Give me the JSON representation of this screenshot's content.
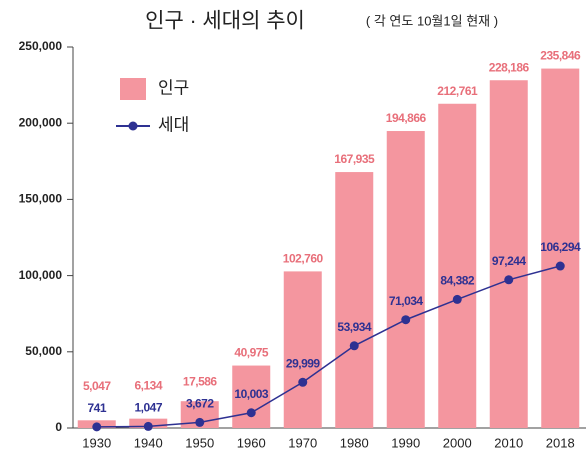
{
  "chart_data": {
    "type": "bar",
    "title": "인구 · 세대의 추이",
    "subtitle": "( 각 연도 10월1일 현재 )",
    "categories": [
      "1930",
      "1940",
      "1950",
      "1960",
      "1970",
      "1980",
      "1990",
      "2000",
      "2010",
      "2018"
    ],
    "series": [
      {
        "name": "인구",
        "type": "bar",
        "color": "#f4969f",
        "label_color": "#e86f7a",
        "values": [
          5047,
          6134,
          17586,
          40975,
          102760,
          167935,
          194866,
          212761,
          228186,
          235846
        ],
        "value_labels": [
          "5,047",
          "6,134",
          "17,586",
          "40,975",
          "102,760",
          "167,935",
          "194,866",
          "212,761",
          "228,186",
          "235,846"
        ]
      },
      {
        "name": "세대",
        "type": "line",
        "color": "#2e3192",
        "label_color": "#2e3192",
        "values": [
          741,
          1047,
          3672,
          10003,
          29999,
          53934,
          71034,
          84382,
          97244,
          106294
        ],
        "value_labels": [
          "741",
          "1,047",
          "3,672",
          "10,003",
          "29,999",
          "53,934",
          "71,034",
          "84,382",
          "97,244",
          "106,294"
        ]
      }
    ],
    "ylim": [
      0,
      250000
    ],
    "yticks": [
      0,
      {
        "value": 50000,
        "label": "50,000"
      },
      {
        "value": 100000,
        "label": "100,000"
      },
      {
        "value": 150000,
        "label": "150,000"
      },
      {
        "value": 200000,
        "label": "200,000"
      },
      {
        "value": 250000,
        "label": "250,000"
      }
    ],
    "grid": false
  }
}
